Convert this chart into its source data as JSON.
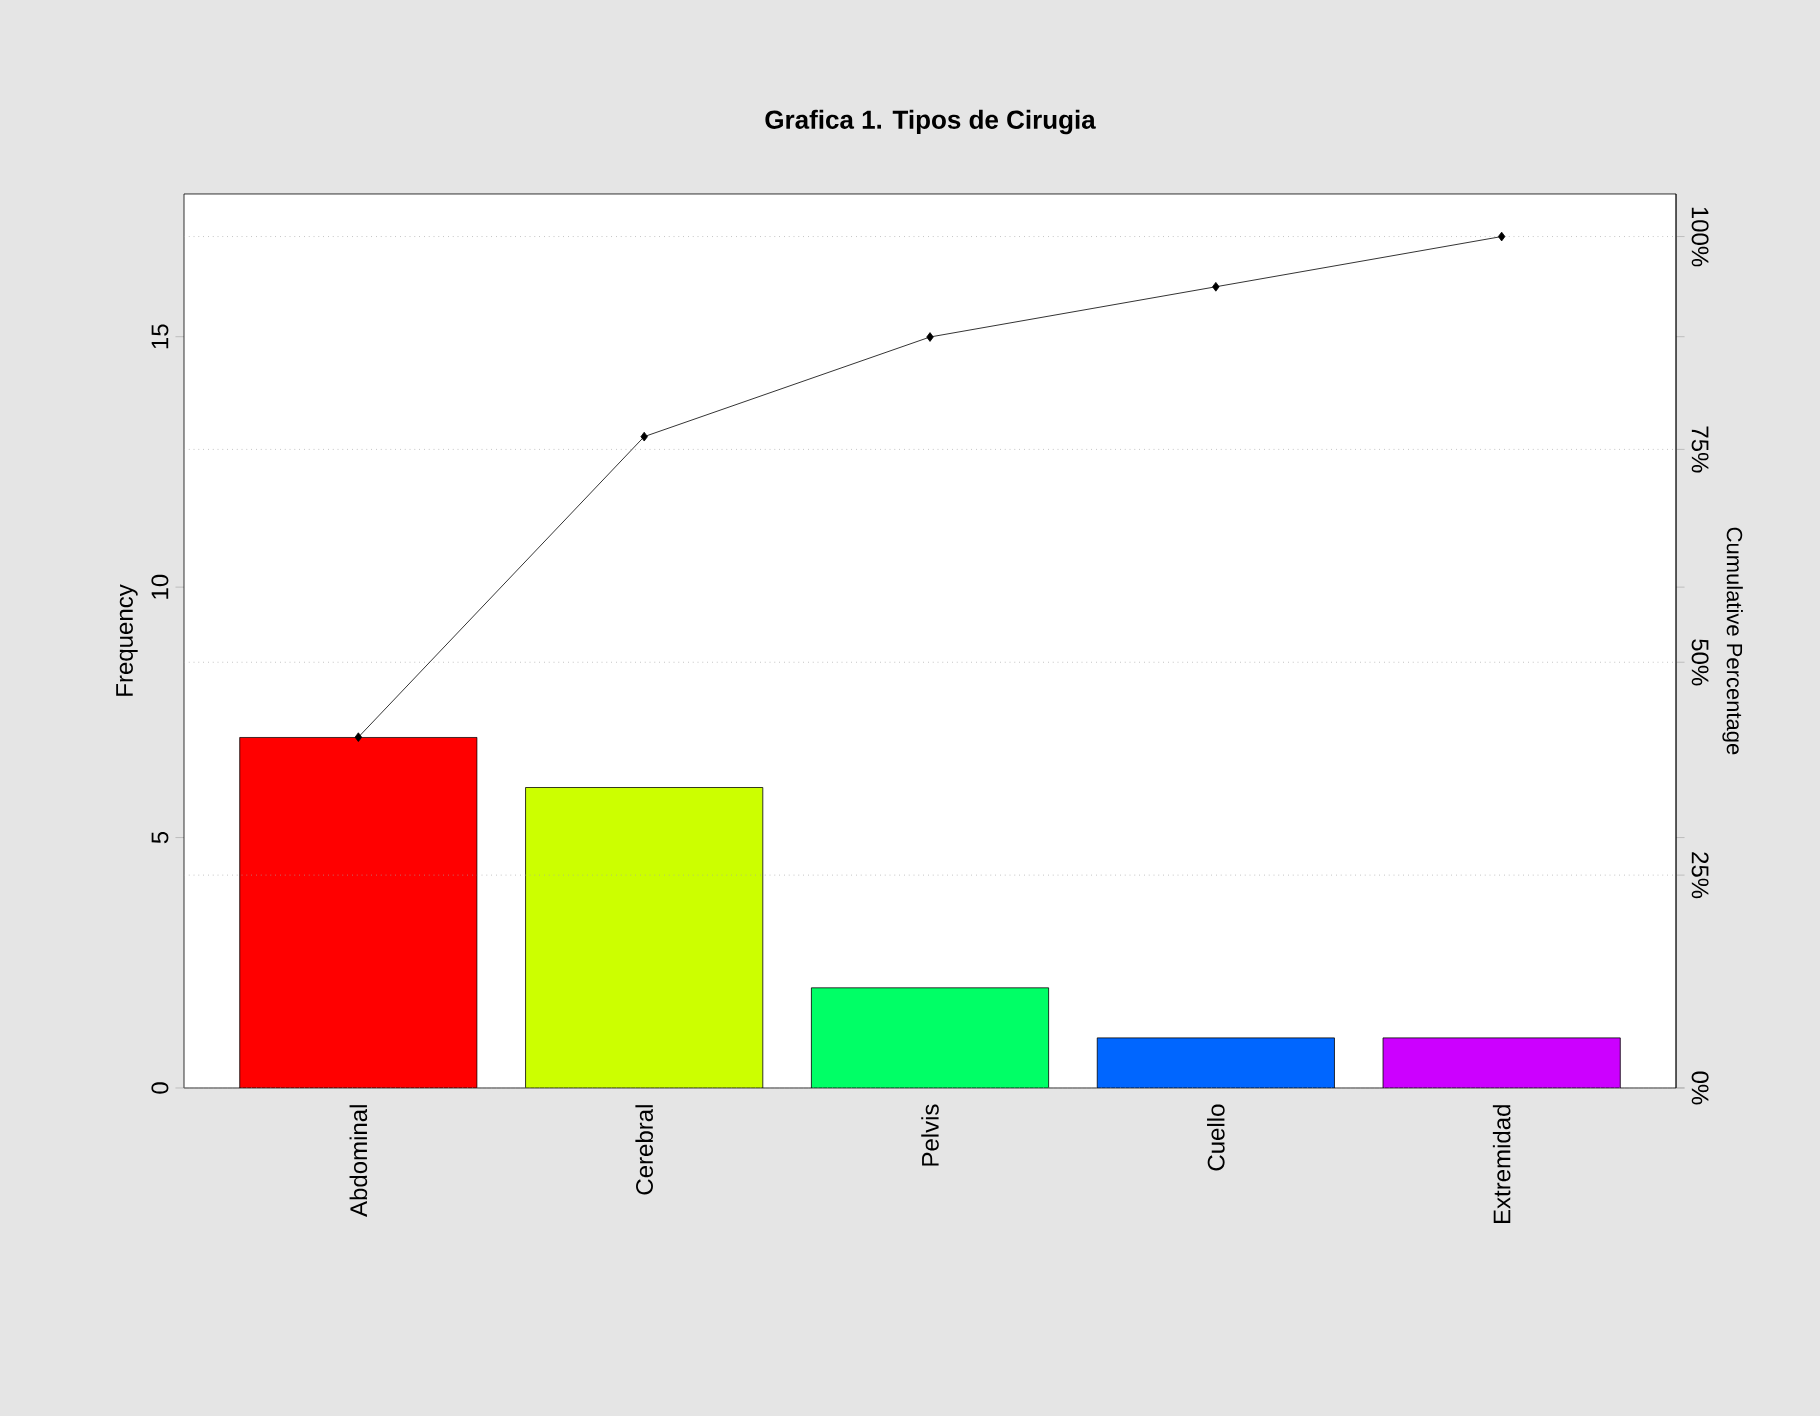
{
  "chart_data": {
    "type": "bar",
    "title": "Grafica 1. Tipos de Cirugia",
    "ylabel": "Frequency",
    "y2label": "Cumulative Percentage",
    "categories": [
      "Abdominal",
      "Cerebral",
      "Pelvis",
      "Cuello",
      "Extremidad"
    ],
    "ylim": [
      0,
      17.85
    ],
    "yticks": [
      0,
      5,
      10,
      15
    ],
    "y2lim": [
      0,
      105
    ],
    "y2ticks": [
      {
        "value": 0,
        "label": "0%"
      },
      {
        "value": 25,
        "label": "25%"
      },
      {
        "value": 50,
        "label": "50%"
      },
      {
        "value": 75,
        "label": "75%"
      },
      {
        "value": 100,
        "label": "100%"
      }
    ],
    "grid": "y2",
    "marker": "diamond",
    "line_style": "solid",
    "series": [
      {
        "colors": [
          "#ff0000",
          "#ccff00",
          "#00ff66",
          "#0066ff",
          "#cc00ff"
        ],
        "values": [
          7,
          6,
          2,
          1,
          1
        ]
      },
      {
        "type": "line",
        "axis": "y2",
        "color": "#000000",
        "values": [
          41.2,
          76.5,
          88.2,
          94.1,
          100
        ]
      }
    ]
  }
}
